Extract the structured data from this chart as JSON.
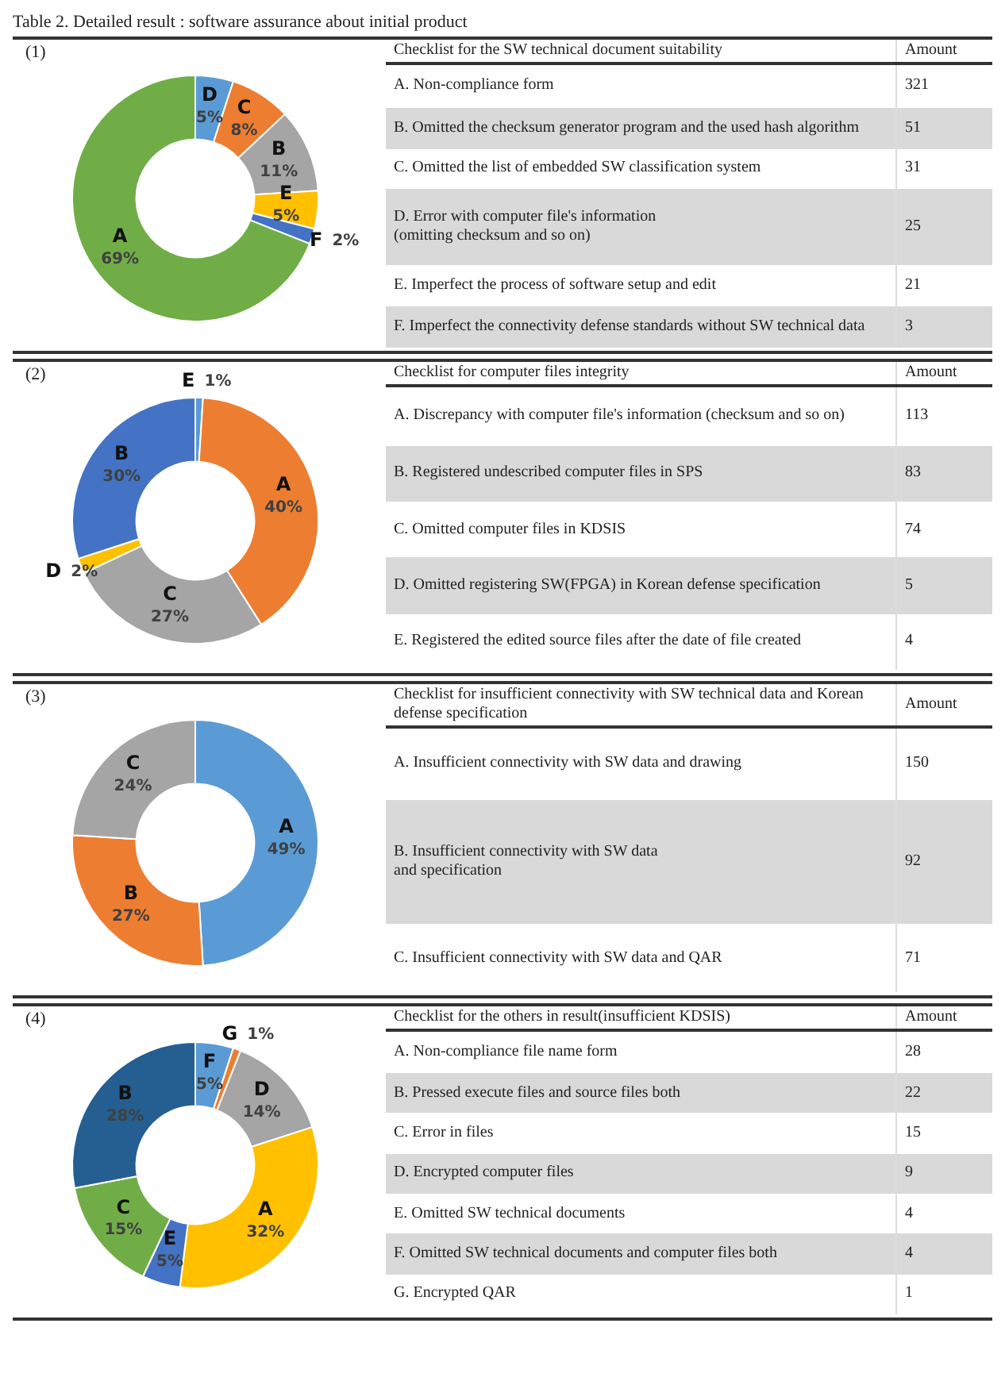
{
  "chart_data": [
    {
      "type": "other",
      "title": "Table 2. Detailed result : software assurance about initial product"
    },
    {
      "type": "donut",
      "title": "(1)",
      "categories": [
        "D",
        "C",
        "B",
        "E",
        "F",
        "A"
      ],
      "values": [
        5,
        8,
        11,
        5,
        2,
        69
      ],
      "value_labels": [
        "5%",
        "8%",
        "11%",
        "5%",
        "2%",
        "69%"
      ],
      "colors": [
        "#5b9bd5",
        "#ed7d31",
        "#a5a5a5",
        "#ffc000",
        "#4472c4",
        "#70ad47"
      ]
    },
    {
      "type": "other",
      "title": "Checklist for the SW technical document suitability",
      "xlabel": "Amount",
      "categories": [
        "A. Non-compliance form",
        "B. Omitted the checksum generator program and the used hash algorithm",
        "C. Omitted the list of embedded SW classification system",
        "D. Error with computer file's information\n(omitting checksum and so on)",
        "E. Imperfect the process of software setup and edit",
        "F. Imperfect the connectivity defense standards without SW technical data"
      ],
      "values": [
        321,
        51,
        31,
        25,
        21,
        3
      ],
      "data_labels": true
    },
    {
      "type": "donut",
      "title": "(2)",
      "categories": [
        "E",
        "A",
        "C",
        "D",
        "B"
      ],
      "values": [
        1,
        40,
        27,
        2,
        30
      ],
      "value_labels": [
        "1%",
        "40%",
        "27%",
        "2%",
        "30%"
      ],
      "colors": [
        "#5b9bd5",
        "#ed7d31",
        "#a5a5a5",
        "#ffc000",
        "#4472c4"
      ]
    },
    {
      "type": "other",
      "title": "Checklist for computer files integrity",
      "xlabel": "Amount",
      "categories": [
        "A. Discrepancy with computer file's information (checksum and so on)",
        "B. Registered undescribed computer files in SPS",
        "C. Omitted computer files in KDSIS",
        "D. Omitted registering SW(FPGA) in Korean defense specification",
        "E. Registered the edited source files after the date of file created"
      ],
      "values": [
        113,
        83,
        74,
        5,
        4
      ],
      "data_labels": true
    },
    {
      "type": "donut",
      "title": "(3)",
      "categories": [
        "A",
        "B",
        "C"
      ],
      "values": [
        49,
        27,
        24
      ],
      "value_labels": [
        "49%",
        "27%",
        "24%"
      ],
      "colors": [
        "#5b9bd5",
        "#ed7d31",
        "#a5a5a5"
      ]
    },
    {
      "type": "other",
      "title": "Checklist for insufficient connectivity with SW technical data and Korean defense specification",
      "xlabel": "Amount",
      "categories": [
        "A. Insufficient connectivity with SW data and drawing",
        "B. Insufficient connectivity with SW data\nand specification",
        "C. Insufficient connectivity with SW data and QAR"
      ],
      "values": [
        150,
        92,
        71
      ],
      "data_labels": true
    },
    {
      "type": "donut",
      "title": "(4)",
      "categories": [
        "F",
        "G",
        "D",
        "A",
        "E",
        "C",
        "B"
      ],
      "values": [
        5,
        1,
        14,
        32,
        5,
        15,
        28
      ],
      "value_labels": [
        "5%",
        "1%",
        "14%",
        "32%",
        "5%",
        "15%",
        "28%"
      ],
      "colors": [
        "#5b9bd5",
        "#ed7d31",
        "#a5a5a5",
        "#ffc000",
        "#4472c4",
        "#70ad47",
        "#255e91"
      ]
    },
    {
      "type": "other",
      "title": "Checklist for the others in result(insufficient KDSIS)",
      "xlabel": "Amount",
      "categories": [
        "A. Non-compliance file name form",
        "B. Pressed execute files and source files both",
        "C. Error in files",
        "D. Encrypted computer files",
        "E. Omitted SW technical documents",
        "F. Omitted SW technical documents and computer files both",
        "G. Encrypted QAR"
      ],
      "values": [
        28,
        22,
        15,
        9,
        4,
        4,
        1
      ],
      "data_labels": true
    }
  ]
}
